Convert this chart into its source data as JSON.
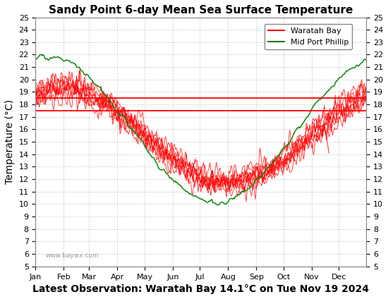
{
  "title": "Sandy Point 6-day Mean Sea Surface Temperature",
  "xlabel_bottom": "Latest Observation: Waratah Bay 14.1°C on Tue Nov 19 2024",
  "ylabel": "Temperature (°C)",
  "ylim": [
    5,
    25
  ],
  "yticks": [
    5,
    6,
    7,
    8,
    9,
    10,
    11,
    12,
    13,
    14,
    15,
    16,
    17,
    18,
    19,
    20,
    21,
    22,
    23,
    24,
    25
  ],
  "hlines": [
    18.5,
    17.5
  ],
  "hline_color": "red",
  "waratah_color": "red",
  "midport_color": "green",
  "background_color": "white",
  "grid_color": "#aaaaaa",
  "watermark": "www.baywx.com",
  "legend_waratah": "Waratah Bay",
  "legend_midport": "Mid Port Phillip",
  "title_fontsize": 11,
  "label_fontsize": 10,
  "tick_fontsize": 8,
  "figwidth": 5.5,
  "figheight": 4.24,
  "dpi": 100
}
